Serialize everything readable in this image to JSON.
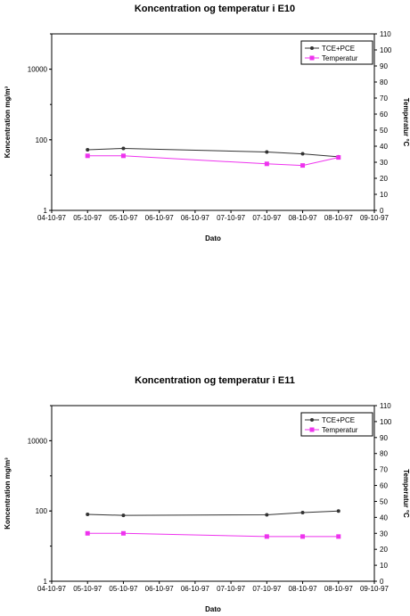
{
  "chart_data": [
    {
      "type": "line",
      "title": "Koncentration og temperatur i E10",
      "xlabel": "Dato",
      "ylabel": "Koncentration mg/m³",
      "y2label": "Temperatur °C",
      "x_ticks": [
        "04-10-97",
        "05-10-97",
        "05-10-97",
        "06-10-97",
        "06-10-97",
        "07-10-97",
        "07-10-97",
        "08-10-97",
        "08-10-97",
        "09-10-97"
      ],
      "y_scale": "log",
      "ylim": [
        1,
        100000
      ],
      "y_ticks": [
        "1",
        "100",
        "10000"
      ],
      "y2lim": [
        0,
        110
      ],
      "y2_ticks": [
        "0",
        "10",
        "20",
        "30",
        "40",
        "50",
        "60",
        "70",
        "80",
        "90",
        "100",
        "110"
      ],
      "legend_position": "top-right",
      "series": [
        {
          "name": "TCE+PCE",
          "axis": "left",
          "color": "#333333",
          "marker": "circle",
          "x": [
            1,
            2,
            6,
            7,
            8
          ],
          "values": [
            52,
            57,
            45,
            40,
            33
          ]
        },
        {
          "name": "Temperatur",
          "axis": "right",
          "color": "#ee33ee",
          "marker": "square",
          "x": [
            1,
            2,
            6,
            7,
            8
          ],
          "values": [
            34,
            34,
            29,
            28,
            33
          ]
        }
      ]
    },
    {
      "type": "line",
      "title": "Koncentration og temperatur i E11",
      "xlabel": "Dato",
      "ylabel": "Koncentration mg/m³",
      "y2label": "Temperatur °C",
      "x_ticks": [
        "04-10-97",
        "05-10-97",
        "05-10-97",
        "06-10-97",
        "06-10-97",
        "07-10-97",
        "07-10-97",
        "08-10-97",
        "08-10-97",
        "09-10-97"
      ],
      "y_scale": "log",
      "ylim": [
        1,
        100000
      ],
      "y_ticks": [
        "1",
        "100",
        "10000"
      ],
      "y2lim": [
        0,
        110
      ],
      "y2_ticks": [
        "0",
        "10",
        "20",
        "30",
        "40",
        "50",
        "60",
        "70",
        "80",
        "90",
        "100",
        "110"
      ],
      "legend_position": "top-right",
      "series": [
        {
          "name": "TCE+PCE",
          "axis": "left",
          "color": "#333333",
          "marker": "circle",
          "x": [
            1,
            2,
            6,
            7,
            8
          ],
          "values": [
            80,
            75,
            78,
            90,
            100
          ]
        },
        {
          "name": "Temperatur",
          "axis": "right",
          "color": "#ee33ee",
          "marker": "square",
          "x": [
            1,
            2,
            6,
            7,
            8
          ],
          "values": [
            30,
            30,
            28,
            28,
            28
          ]
        }
      ]
    }
  ]
}
